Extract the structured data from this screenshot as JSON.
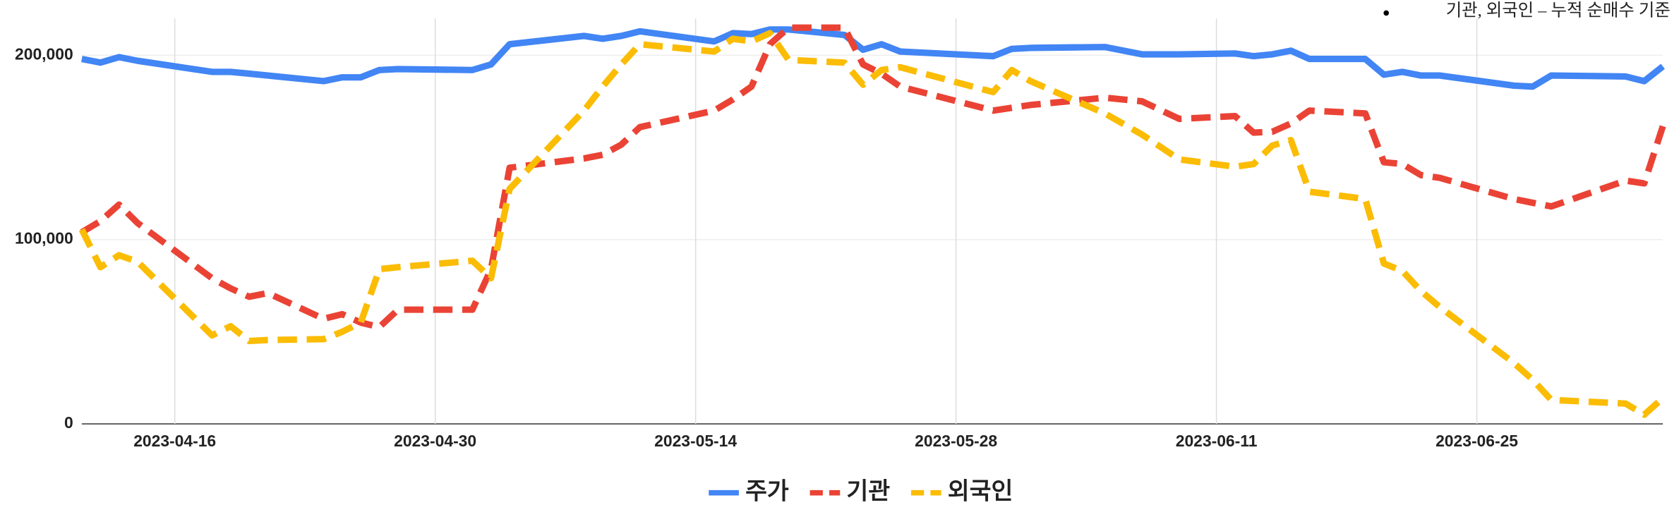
{
  "chart_data": {
    "type": "line",
    "subtitle": "기관, 외국인 – 누적 순매수 기준",
    "x": [
      "2023-04-11",
      "2023-04-12",
      "2023-04-13",
      "2023-04-14",
      "2023-04-18",
      "2023-04-19",
      "2023-04-20",
      "2023-04-21",
      "2023-04-24",
      "2023-04-25",
      "2023-04-26",
      "2023-04-27",
      "2023-04-28",
      "2023-05-02",
      "2023-05-03",
      "2023-05-04",
      "2023-05-08",
      "2023-05-09",
      "2023-05-10",
      "2023-05-11",
      "2023-05-15",
      "2023-05-16",
      "2023-05-17",
      "2023-05-18",
      "2023-05-19",
      "2023-05-22",
      "2023-05-23",
      "2023-05-24",
      "2023-05-25",
      "2023-05-30",
      "2023-05-31",
      "2023-06-01",
      "2023-06-05",
      "2023-06-07",
      "2023-06-09",
      "2023-06-12",
      "2023-06-13",
      "2023-06-14",
      "2023-06-15",
      "2023-06-16",
      "2023-06-19",
      "2023-06-20",
      "2023-06-21",
      "2023-06-22",
      "2023-06-23",
      "2023-06-27",
      "2023-06-28",
      "2023-06-29",
      "2023-07-03",
      "2023-07-04",
      "2023-07-05"
    ],
    "series": [
      {
        "name": "주가",
        "color": "#4285f4",
        "dashed": false,
        "values": [
          198000,
          196000,
          199000,
          197000,
          191000,
          191000,
          190000,
          189000,
          186000,
          188000,
          188000,
          192000,
          192500,
          192000,
          195000,
          206000,
          210500,
          209000,
          210500,
          213000,
          207500,
          212000,
          211500,
          214000,
          214000,
          211000,
          203000,
          206000,
          202000,
          199500,
          203500,
          204000,
          204500,
          200500,
          200500,
          201000,
          199500,
          200500,
          202500,
          198000,
          198000,
          189500,
          191000,
          189000,
          189000,
          183500,
          183000,
          189000,
          188500,
          186000,
          194000
        ]
      },
      {
        "name": "기관",
        "color": "#ea4335",
        "dashed": true,
        "values": [
          104000,
          110000,
          119000,
          109000,
          79000,
          73500,
          69000,
          71000,
          57000,
          59500,
          55000,
          52500,
          62000,
          62000,
          84000,
          139000,
          144000,
          146000,
          151500,
          161000,
          170000,
          176000,
          183000,
          206000,
          215000,
          215000,
          195000,
          190000,
          183000,
          170000,
          171500,
          173000,
          177000,
          175000,
          165500,
          167000,
          158000,
          158500,
          163000,
          170000,
          168500,
          142000,
          141000,
          135000,
          133500,
          122000,
          120000,
          118000,
          132000,
          130500,
          161500
        ]
      },
      {
        "name": "외국인",
        "color": "#fbbc04",
        "dashed": true,
        "values": [
          105500,
          85000,
          91500,
          88000,
          48000,
          53000,
          45000,
          45500,
          46000,
          50000,
          55000,
          84000,
          85000,
          88500,
          79000,
          127500,
          170000,
          183000,
          195000,
          206000,
          202000,
          209000,
          207500,
          212000,
          197500,
          196000,
          184000,
          192000,
          193500,
          180000,
          192000,
          186000,
          168500,
          157000,
          143500,
          139500,
          141000,
          151000,
          154000,
          126000,
          122000,
          87000,
          83000,
          72000,
          63500,
          33000,
          24000,
          13000,
          11000,
          5000,
          14000
        ]
      }
    ],
    "xlim": [
      "2023-04-11",
      "2023-07-05"
    ],
    "xticks": [
      "2023-04-16",
      "2023-04-30",
      "2023-05-14",
      "2023-05-28",
      "2023-06-11",
      "2023-06-25"
    ],
    "ylim": [
      0,
      220000
    ],
    "yticks": [
      0,
      {
        "value": 100000,
        "label": "100,000"
      },
      {
        "value": 200000,
        "label": "200,000"
      }
    ],
    "grid": true,
    "legend": "bottom"
  }
}
